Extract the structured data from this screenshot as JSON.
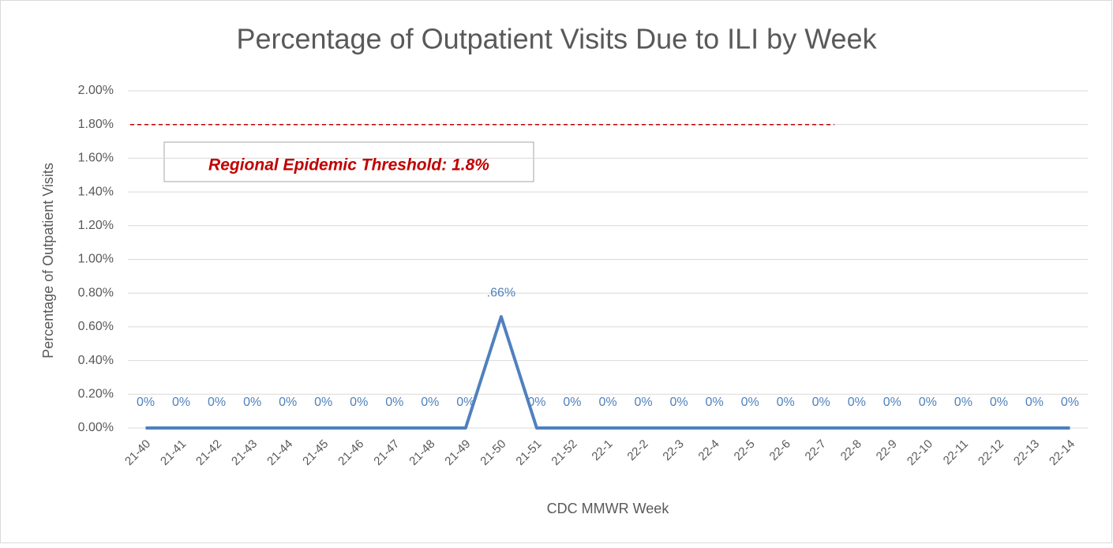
{
  "chart_data": {
    "type": "line",
    "title": "Percentage of Outpatient Visits Due to ILI by Week",
    "x_label": "CDC MMWR Week",
    "y_label": "Percentage of Outpatient Visits",
    "categories": [
      "21-40",
      "21-41",
      "21-42",
      "21-43",
      "21-44",
      "21-45",
      "21-46",
      "21-47",
      "21-48",
      "21-49",
      "21-50",
      "21-51",
      "21-52",
      "22-1",
      "22-2",
      "22-3",
      "22-4",
      "22-5",
      "22-6",
      "22-7",
      "22-8",
      "22-9",
      "22-10",
      "22-11",
      "22-12",
      "22-13",
      "22-14"
    ],
    "values": [
      0,
      0,
      0,
      0,
      0,
      0,
      0,
      0,
      0,
      0,
      0.66,
      0,
      0,
      0,
      0,
      0,
      0,
      0,
      0,
      0,
      0,
      0,
      0,
      0,
      0,
      0,
      0
    ],
    "value_labels": [
      "0%",
      "0%",
      "0%",
      "0%",
      "0%",
      "0%",
      "0%",
      "0%",
      "0%",
      "0%",
      ".66%",
      "0%",
      "0%",
      "0%",
      "0%",
      "0%",
      "0%",
      "0%",
      "0%",
      "0%",
      "0%",
      "0%",
      "0%",
      "0%",
      "0%",
      "0%",
      "0%"
    ],
    "color": "#4f81bd",
    "ylim": [
      0,
      2
    ],
    "yticks": [
      {
        "value": 0,
        "label": "0.00%"
      },
      {
        "value": 0.2,
        "label": "0.20%"
      },
      {
        "value": 0.4,
        "label": "0.40%"
      },
      {
        "value": 0.6,
        "label": "0.60%"
      },
      {
        "value": 0.8,
        "label": "0.80%"
      },
      {
        "value": 1,
        "label": "1.00%"
      },
      {
        "value": 1.2,
        "label": "1.20%"
      },
      {
        "value": 1.4,
        "label": "1.40%"
      },
      {
        "value": 1.6,
        "label": "1.60%"
      },
      {
        "value": 1.8,
        "label": "1.80%"
      },
      {
        "value": 2,
        "label": "2.00%"
      }
    ],
    "grid": true,
    "threshold": {
      "value": 1.8,
      "label": "Regional Epidemic Threshold: 1.8%",
      "color": "#c00000"
    }
  }
}
